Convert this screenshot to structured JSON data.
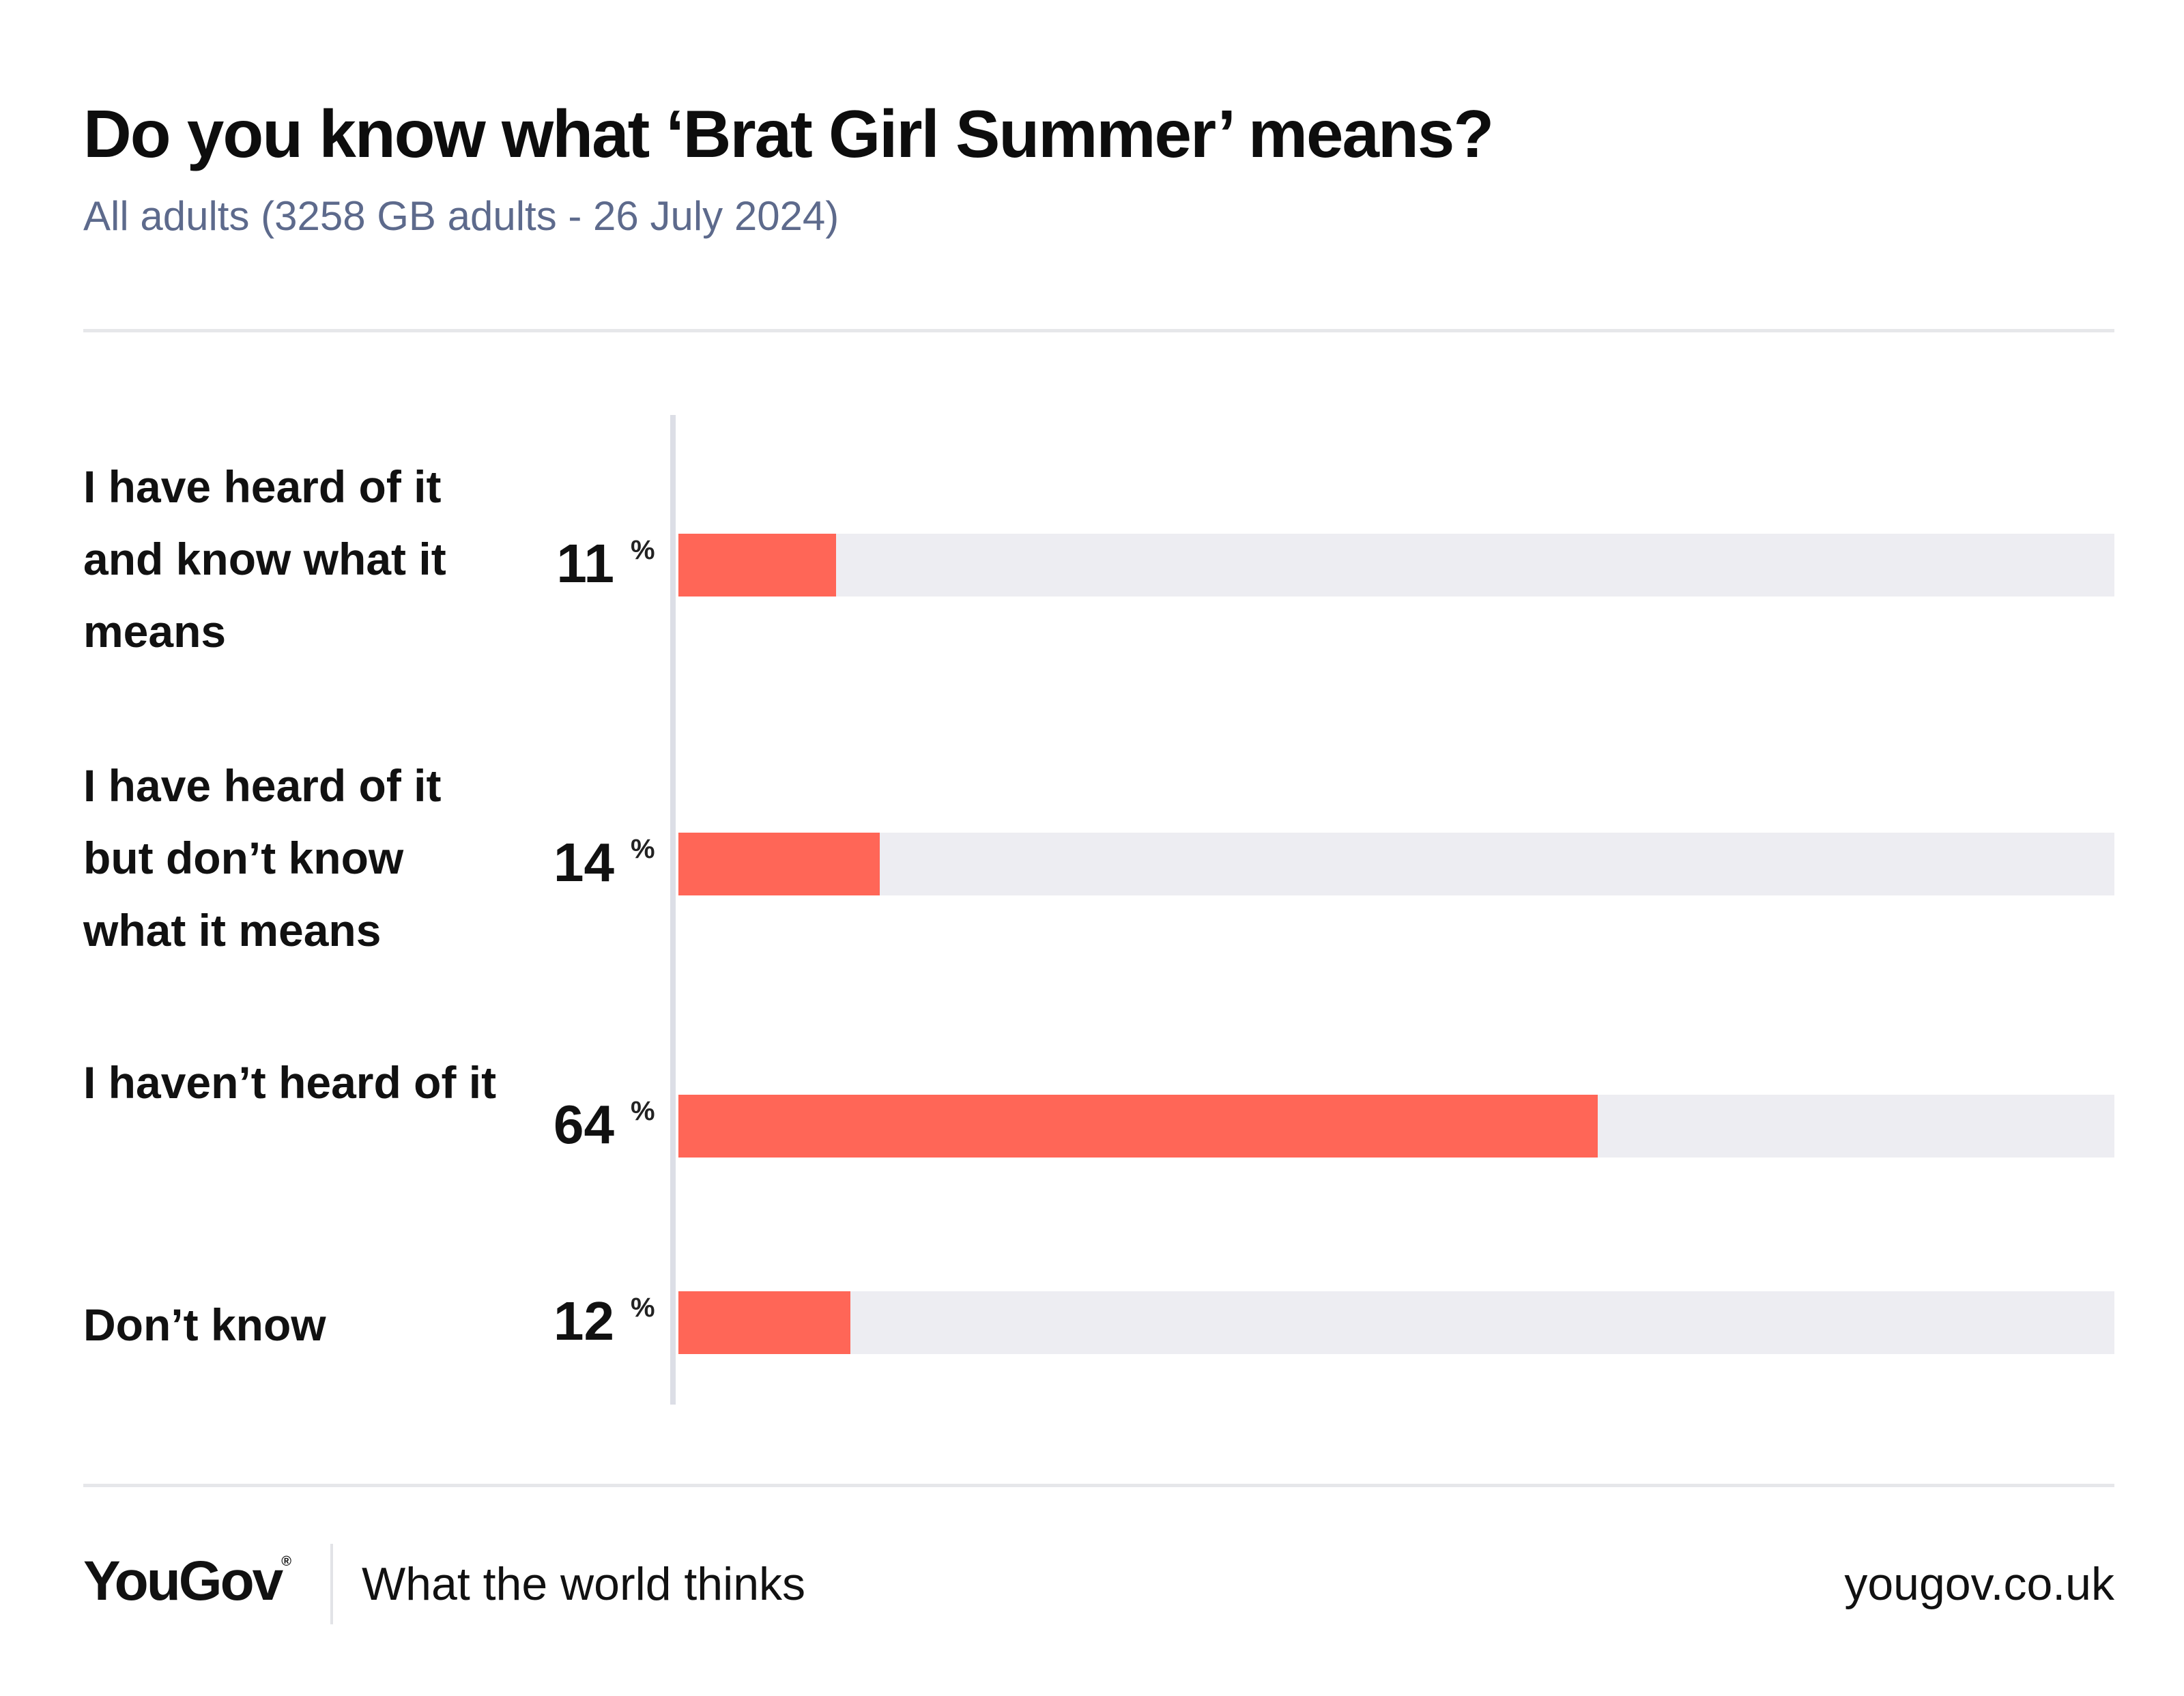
{
  "header": {
    "title": "Do you know what ‘Brat Girl Summer’ means?",
    "subtitle": "All adults (3258 GB adults - 26 July 2024)"
  },
  "chart_data": {
    "type": "bar",
    "orientation": "horizontal",
    "title": "Do you know what ‘Brat Girl Summer’ means?",
    "subtitle": "All adults (3258 GB adults - 26 July 2024)",
    "categories": [
      "I have heard of it and know what it means",
      "I have heard of it but don’t know what it means",
      "I haven’t heard of it",
      "Don’t know"
    ],
    "values": [
      11,
      14,
      64,
      12
    ],
    "unit": "%",
    "xlim": [
      0,
      100
    ],
    "grid": false,
    "bar_color": "#ff6657",
    "track_color": "#ededf2"
  },
  "footer": {
    "brand": "YouGov",
    "registered": "®",
    "tagline": "What the world thinks",
    "url": "yougov.co.uk"
  }
}
